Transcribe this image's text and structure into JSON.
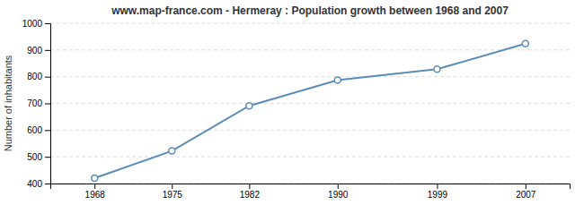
{
  "chart_data": {
    "type": "line",
    "title": "www.map-france.com - Hermeray : Population growth between 1968 and 2007",
    "ylabel": "Number of inhabitants",
    "x": [
      1968,
      1975,
      1982,
      1990,
      1999,
      2007
    ],
    "values": [
      420,
      522,
      691,
      787,
      828,
      924
    ],
    "color": "#5b8db8",
    "marker": "circle",
    "xlim": [
      1964,
      2011
    ],
    "xticks": [
      1968,
      1975,
      1982,
      1990,
      1999,
      2007
    ],
    "ylim": [
      400,
      1000
    ],
    "yticks": [
      400,
      500,
      600,
      700,
      800,
      900,
      1000
    ],
    "grid": true
  }
}
